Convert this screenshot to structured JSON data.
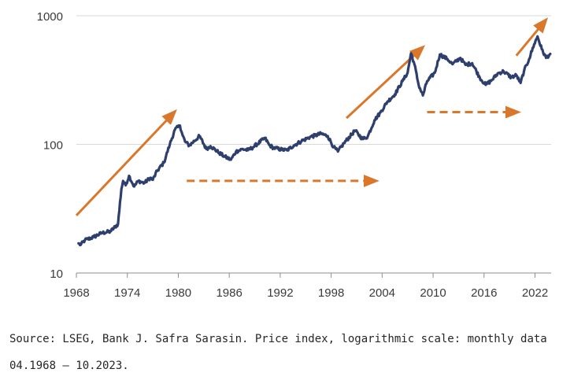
{
  "chart_data": {
    "type": "line",
    "title": "",
    "xlabel": "",
    "ylabel": "",
    "yscale": "log",
    "ylim": [
      10,
      1000
    ],
    "xlim": [
      1968,
      2023.9
    ],
    "y_ticks": [
      10,
      100,
      1000
    ],
    "y_tick_labels": [
      "10",
      "100",
      "1000"
    ],
    "x_ticks": [
      1968,
      1974,
      1980,
      1986,
      1992,
      1998,
      2004,
      2010,
      2016,
      2022
    ],
    "x_tick_labels": [
      "1968",
      "1974",
      "1980",
      "1986",
      "1992",
      "1998",
      "2004",
      "2010",
      "2016",
      "2022"
    ],
    "grid": "horizontal",
    "series": [
      {
        "color": "#2e3f6e",
        "x": [
          1968.25,
          1968.5,
          1969,
          1970,
          1971,
          1972,
          1972.9,
          1973.3,
          1973.5,
          1973.8,
          1974.2,
          1974.8,
          1975.3,
          1976,
          1976.7,
          1977,
          1977.5,
          1978.3,
          1979,
          1979.6,
          1980.2,
          1980.5,
          1980.8,
          1981.3,
          1982.5,
          1983.3,
          1983.8,
          1984.8,
          1985.5,
          1986.2,
          1986.8,
          1987.6,
          1988.2,
          1988.8,
          1990.2,
          1990.7,
          1991.2,
          1992.2,
          1992.8,
          1993.6,
          1994.5,
          1995.5,
          1996.8,
          1997.6,
          1998.3,
          1998.8,
          1999.5,
          2000.8,
          2001.7,
          2002.3,
          2003.1,
          2003.8,
          2004.6,
          2005.5,
          2006.4,
          2007,
          2007.4,
          2007.8,
          2008.3,
          2008.8,
          2009.3,
          2010.2,
          2010.8,
          2011.7,
          2012.3,
          2013.2,
          2013.8,
          2014.6,
          2015.5,
          2016.2,
          2016.9,
          2017.6,
          2018.3,
          2019.2,
          2019.8,
          2020.3,
          2020.7,
          2021.3,
          2021.9,
          2022.3,
          2022.8,
          2023.3,
          2023.8
        ],
        "values": [
          17,
          16.5,
          18,
          19,
          20.5,
          21,
          24,
          45,
          52,
          48,
          57,
          47,
          52,
          50,
          55,
          53,
          62,
          72,
          100,
          130,
          140,
          118,
          105,
          98,
          116,
          92,
          97,
          86,
          80,
          76,
          88,
          92,
          90,
          95,
          112,
          99,
          94,
          91,
          90,
          98,
          106,
          114,
          121,
          116,
          95,
          88,
          102,
          128,
          110,
          115,
          154,
          177,
          214,
          245,
          310,
          360,
          510,
          420,
          290,
          240,
          310,
          360,
          500,
          460,
          420,
          470,
          415,
          428,
          330,
          290,
          315,
          355,
          370,
          332,
          345,
          300,
          370,
          460,
          600,
          690,
          550,
          470,
          505
        ]
      }
    ],
    "annotations": [
      {
        "kind": "solid-arrow",
        "color": "#d9772b",
        "from": [
          1968,
          28
        ],
        "to": [
          1979.6,
          180
        ]
      },
      {
        "kind": "dashed-arrow",
        "color": "#d9772b",
        "from": [
          1981,
          52
        ],
        "to": [
          2003.3,
          52
        ]
      },
      {
        "kind": "solid-arrow",
        "color": "#d9772b",
        "from": [
          1999.8,
          160
        ],
        "to": [
          2008.8,
          570
        ]
      },
      {
        "kind": "dashed-arrow",
        "color": "#d9772b",
        "from": [
          2009.3,
          178
        ],
        "to": [
          2020,
          178
        ]
      },
      {
        "kind": "solid-arrow",
        "color": "#d9772b",
        "from": [
          2019.8,
          490
        ],
        "to": [
          2023.3,
          930
        ]
      }
    ]
  },
  "source_note": "Source: LSEG, Bank J. Safra Sarasin. Price index, logarithmic scale: monthly data 04.1968 – 10.2023."
}
